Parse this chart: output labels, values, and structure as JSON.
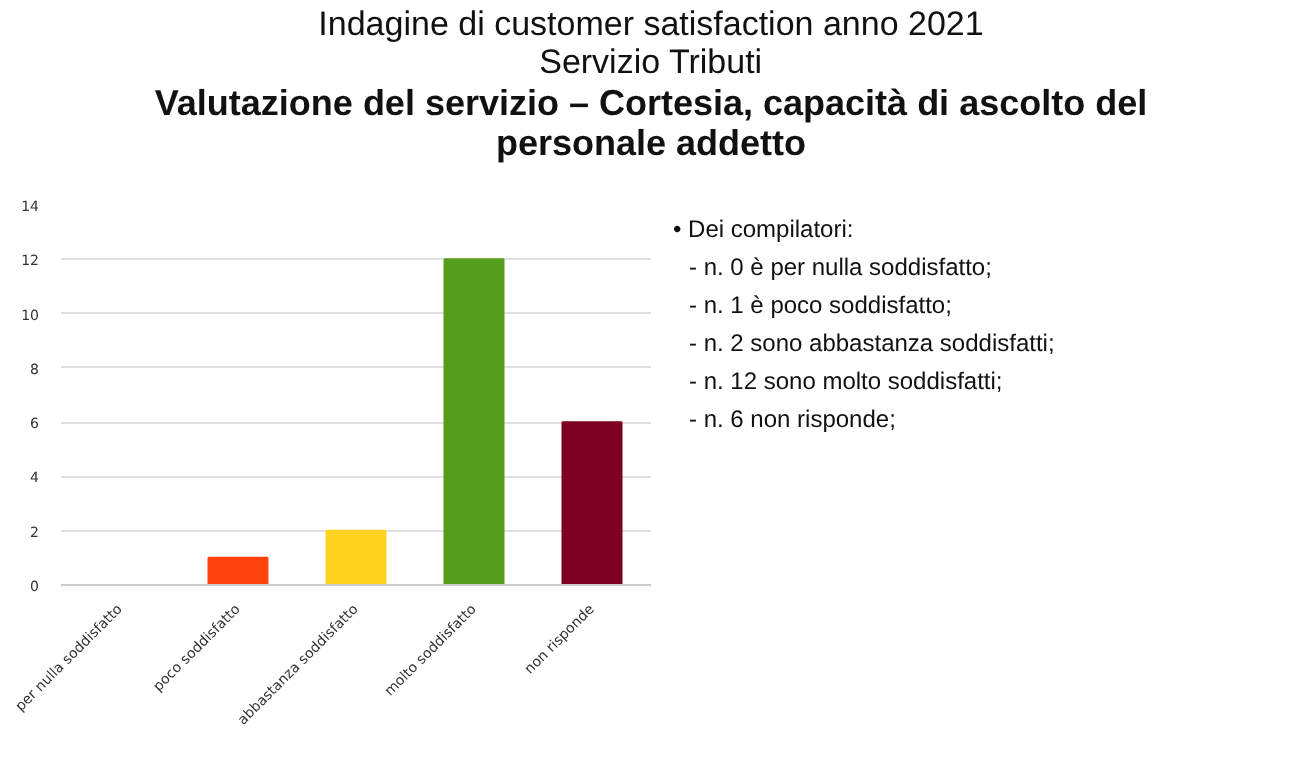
{
  "chart_data": {
    "type": "bar",
    "title": "Indagine di customer satisfaction anno 2021",
    "subtitle": "Servizio Tributi",
    "annotations": [
      "Valutazione del servizio – Cortesia, capacità di ascolto del personale addetto",
      "• Dei compilatori:",
      "- n. 0 è per nulla soddisfatto;",
      "- n. 1 è poco soddisfatto;",
      "- n. 2 sono abbastanza soddisfatti;",
      "- n. 12 sono molto soddisfatti;",
      "- n. 6 non risponde;"
    ],
    "categories": [
      "per nulla soddisfatto",
      "poco soddisfatto",
      "abbastanza soddisfatto",
      "molto soddisfatto",
      "non risponde"
    ],
    "values": [
      0,
      1,
      2,
      12,
      6
    ],
    "colors": [
      "#004586",
      "#ff420e",
      "#ffd320",
      "#579d1c",
      "#7e0021"
    ],
    "ylim": [
      0,
      14
    ],
    "yticks": [
      0,
      2,
      4,
      6,
      8,
      10,
      12,
      14
    ],
    "grid": "y"
  }
}
